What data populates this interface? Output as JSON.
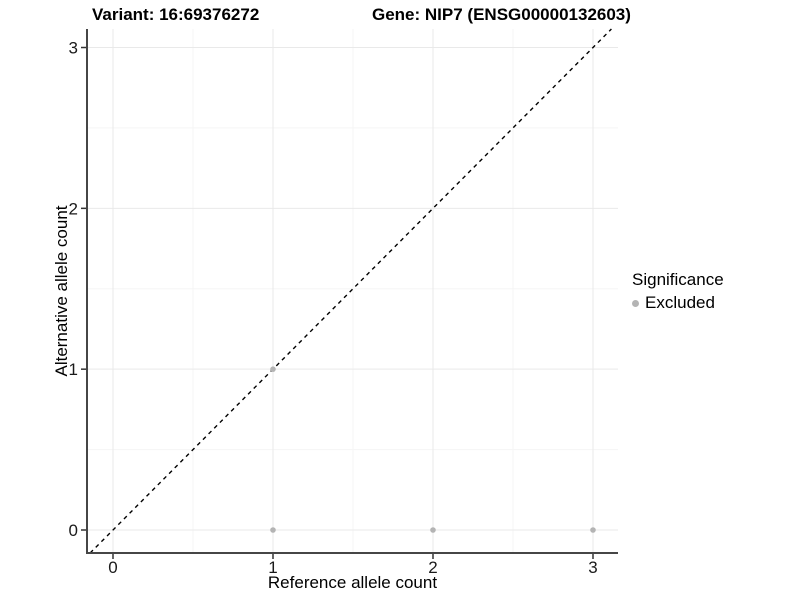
{
  "chart_data": {
    "type": "scatter",
    "title_left": "Variant: 16:69376272",
    "title_right": "Gene: NIP7 (ENSG00000132603)",
    "xlabel": "Reference allele count",
    "ylabel": "Alternative allele count",
    "xticks": [
      "0",
      "1",
      "2",
      "3"
    ],
    "yticks": [
      "0",
      "1",
      "2",
      "3"
    ],
    "xtick_values": [
      0,
      1,
      2,
      3
    ],
    "ytick_values": [
      0,
      1,
      2,
      3
    ],
    "minor_gridlines": [
      0.5,
      1.5,
      2.5
    ],
    "xlim": [
      -0.16,
      3.16
    ],
    "ylim": [
      -0.14,
      3.12
    ],
    "grid": "major and minor, light gray on white",
    "identity_line": {
      "slope": 1,
      "intercept": 0,
      "style": "dashed",
      "color": "#000000"
    },
    "series": [
      {
        "name": "Excluded",
        "color": "#b4b4b4",
        "points": [
          {
            "x": 1,
            "y": 0
          },
          {
            "x": 2,
            "y": 0
          },
          {
            "x": 3,
            "y": 0
          },
          {
            "x": 1,
            "y": 1
          }
        ]
      }
    ],
    "legend": {
      "title": "Significance",
      "position": "right",
      "items": [
        {
          "label": "Excluded",
          "color": "#b4b4b4"
        }
      ]
    }
  },
  "colors": {
    "background": "#ffffff",
    "axis_line": "#464646",
    "grid_major": "#e9e9e9",
    "grid_minor": "#f5f5f5",
    "tick_mark": "#333333",
    "tick_label": "#1a1a1a",
    "point": "#b4b4b4",
    "dashed_line": "#000000"
  }
}
